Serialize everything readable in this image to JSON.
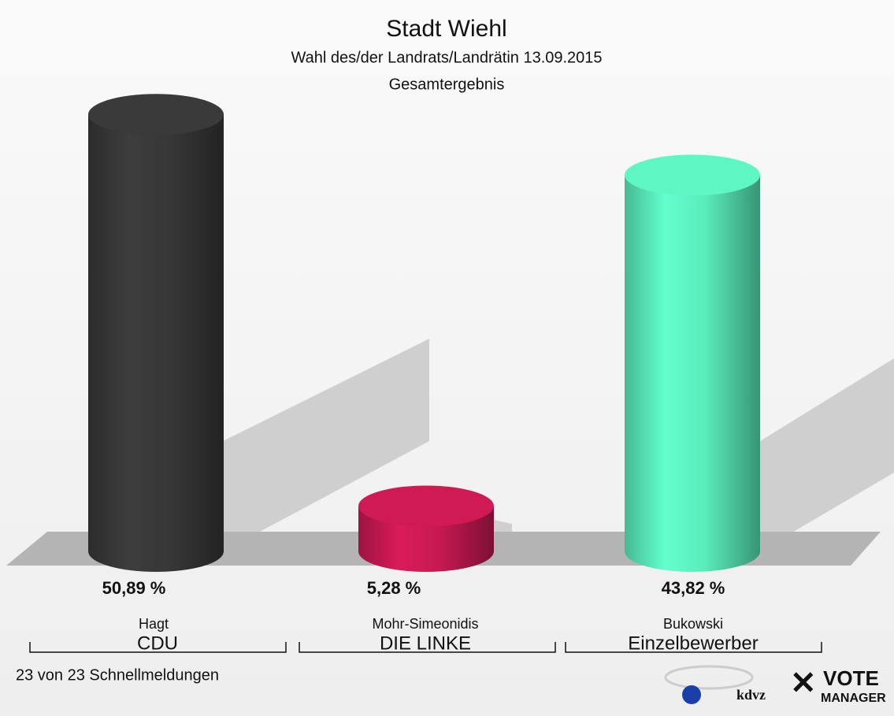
{
  "chart_data": {
    "type": "bar",
    "title": "Stadt Wiehl",
    "subtitle": "Wahl des/der Landrats/Landrätin 13.09.2015",
    "subtitle2": "Gesamtergebnis",
    "categories": [
      "Hagt",
      "Mohr-Simeonidis",
      "Bukowski"
    ],
    "parties": [
      "CDU",
      "DIE LINKE",
      "Einzelbewerber"
    ],
    "values": [
      50.89,
      5.28,
      43.82
    ],
    "value_labels": [
      "50,89 %",
      "5,28 %",
      "43,82 %"
    ],
    "colors": [
      "#3a3a3a",
      "#d01a56",
      "#5ef7c4"
    ],
    "footer": "23 von 23 Schnellmeldungen",
    "logo": [
      "kdvz",
      "VOTE",
      "MANAGER"
    ]
  }
}
